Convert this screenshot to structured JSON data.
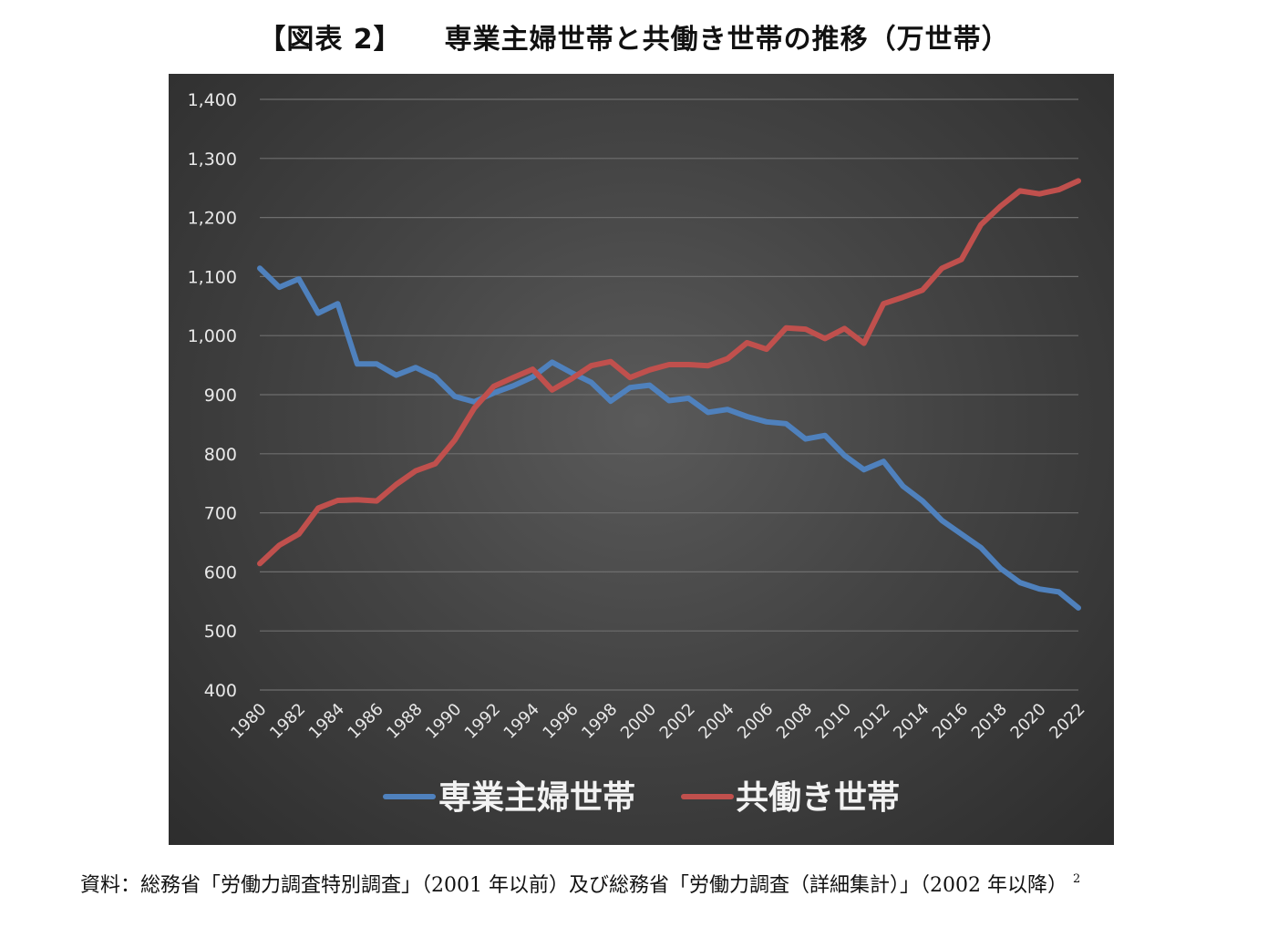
{
  "title": "【図表 2】　　専業主婦世帯と共働き世帯の推移（万世帯）",
  "source": "資料：総務省「労働力調査特別調査」（2001 年以前）及び総務省「労働力調査（詳細集計）」（2002 年以降）",
  "footnote_mark": "2",
  "chart_data": {
    "type": "line",
    "title": "",
    "xlabel": "",
    "ylabel": "",
    "ylim": [
      400,
      1400
    ],
    "yticks": [
      "400",
      "500",
      "600",
      "700",
      "800",
      "900",
      "1,000",
      "1,100",
      "1,200",
      "1,300",
      "1,400"
    ],
    "x": [
      1980,
      1981,
      1982,
      1983,
      1984,
      1985,
      1986,
      1987,
      1988,
      1989,
      1990,
      1991,
      1992,
      1993,
      1994,
      1995,
      1996,
      1997,
      1998,
      1999,
      2000,
      2001,
      2002,
      2003,
      2004,
      2005,
      2006,
      2007,
      2008,
      2009,
      2010,
      2011,
      2012,
      2013,
      2014,
      2015,
      2016,
      2017,
      2018,
      2019,
      2020,
      2021,
      2022
    ],
    "xtick_labels": [
      "1980",
      "1982",
      "1984",
      "1986",
      "1988",
      "1990",
      "1992",
      "1994",
      "1996",
      "1998",
      "2000",
      "2002",
      "2004",
      "2006",
      "2008",
      "2010",
      "2012",
      "2014",
      "2016",
      "2018",
      "2020",
      "2022"
    ],
    "grid": true,
    "legend_position": "bottom",
    "series": [
      {
        "name": "専業主婦世帯",
        "color": "#4f81bd",
        "values": [
          1114,
          1082,
          1096,
          1038,
          1054,
          952,
          952,
          933,
          946,
          930,
          897,
          888,
          903,
          915,
          930,
          955,
          937,
          921,
          889,
          912,
          916,
          890,
          894,
          870,
          875,
          863,
          854,
          851,
          825,
          831,
          797,
          773,
          787,
          745,
          720,
          687,
          664,
          641,
          606,
          582,
          571,
          566,
          539
        ]
      },
      {
        "name": "共働き世帯",
        "color": "#c0504d",
        "values": [
          614,
          645,
          664,
          708,
          721,
          722,
          720,
          748,
          771,
          783,
          823,
          877,
          914,
          929,
          943,
          908,
          927,
          949,
          956,
          929,
          942,
          951,
          951,
          949,
          961,
          988,
          977,
          1013,
          1011,
          995,
          1012,
          987,
          1054,
          1065,
          1077,
          1114,
          1129,
          1188,
          1219,
          1245,
          1240,
          1247,
          1262
        ]
      }
    ]
  }
}
